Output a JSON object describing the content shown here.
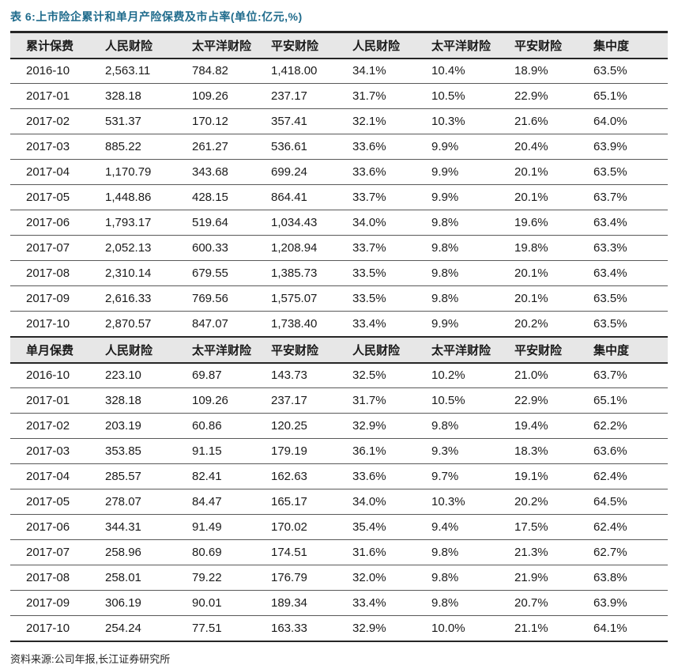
{
  "title": "表 6:上市险企累计和单月产险保费及市占率(单位:亿元,%)",
  "source": "资料来源:公司年报,长江证券研究所",
  "colors": {
    "title_text": "#1F6B8C",
    "header_background": "#E7E7E7",
    "heavy_rule": "#262626",
    "light_rule": "#595959",
    "body_text": "#1a1a1a"
  },
  "table": {
    "sections": [
      {
        "id": "cumulative",
        "headers": [
          "累计保费",
          "人民财险",
          "太平洋财险",
          "平安财险",
          "人民财险",
          "太平洋财险",
          "平安财险",
          "集中度"
        ],
        "rows": [
          [
            "2016-10",
            "2,563.11",
            "784.82",
            "1,418.00",
            "34.1%",
            "10.4%",
            "18.9%",
            "63.5%"
          ],
          [
            "2017-01",
            "328.18",
            "109.26",
            "237.17",
            "31.7%",
            "10.5%",
            "22.9%",
            "65.1%"
          ],
          [
            "2017-02",
            "531.37",
            "170.12",
            "357.41",
            "32.1%",
            "10.3%",
            "21.6%",
            "64.0%"
          ],
          [
            "2017-03",
            "885.22",
            "261.27",
            "536.61",
            "33.6%",
            "9.9%",
            "20.4%",
            "63.9%"
          ],
          [
            "2017-04",
            "1,170.79",
            "343.68",
            "699.24",
            "33.6%",
            "9.9%",
            "20.1%",
            "63.5%"
          ],
          [
            "2017-05",
            "1,448.86",
            "428.15",
            "864.41",
            "33.7%",
            "9.9%",
            "20.1%",
            "63.7%"
          ],
          [
            "2017-06",
            "1,793.17",
            "519.64",
            "1,034.43",
            "34.0%",
            "9.8%",
            "19.6%",
            "63.4%"
          ],
          [
            "2017-07",
            "2,052.13",
            "600.33",
            "1,208.94",
            "33.7%",
            "9.8%",
            "19.8%",
            "63.3%"
          ],
          [
            "2017-08",
            "2,310.14",
            "679.55",
            "1,385.73",
            "33.5%",
            "9.8%",
            "20.1%",
            "63.4%"
          ],
          [
            "2017-09",
            "2,616.33",
            "769.56",
            "1,575.07",
            "33.5%",
            "9.8%",
            "20.1%",
            "63.5%"
          ],
          [
            "2017-10",
            "2,870.57",
            "847.07",
            "1,738.40",
            "33.4%",
            "9.9%",
            "20.2%",
            "63.5%"
          ]
        ]
      },
      {
        "id": "monthly",
        "headers": [
          "单月保费",
          "人民财险",
          "太平洋财险",
          "平安财险",
          "人民财险",
          "太平洋财险",
          "平安财险",
          "集中度"
        ],
        "rows": [
          [
            "2016-10",
            "223.10",
            "69.87",
            "143.73",
            "32.5%",
            "10.2%",
            "21.0%",
            "63.7%"
          ],
          [
            "2017-01",
            "328.18",
            "109.26",
            "237.17",
            "31.7%",
            "10.5%",
            "22.9%",
            "65.1%"
          ],
          [
            "2017-02",
            "203.19",
            "60.86",
            "120.25",
            "32.9%",
            "9.8%",
            "19.4%",
            "62.2%"
          ],
          [
            "2017-03",
            "353.85",
            "91.15",
            "179.19",
            "36.1%",
            "9.3%",
            "18.3%",
            "63.6%"
          ],
          [
            "2017-04",
            "285.57",
            "82.41",
            "162.63",
            "33.6%",
            "9.7%",
            "19.1%",
            "62.4%"
          ],
          [
            "2017-05",
            "278.07",
            "84.47",
            "165.17",
            "34.0%",
            "10.3%",
            "20.2%",
            "64.5%"
          ],
          [
            "2017-06",
            "344.31",
            "91.49",
            "170.02",
            "35.4%",
            "9.4%",
            "17.5%",
            "62.4%"
          ],
          [
            "2017-07",
            "258.96",
            "80.69",
            "174.51",
            "31.6%",
            "9.8%",
            "21.3%",
            "62.7%"
          ],
          [
            "2017-08",
            "258.01",
            "79.22",
            "176.79",
            "32.0%",
            "9.8%",
            "21.9%",
            "63.8%"
          ],
          [
            "2017-09",
            "306.19",
            "90.01",
            "189.34",
            "33.4%",
            "9.8%",
            "20.7%",
            "63.9%"
          ],
          [
            "2017-10",
            "254.24",
            "77.51",
            "163.33",
            "32.9%",
            "10.0%",
            "21.1%",
            "64.1%"
          ]
        ]
      }
    ]
  }
}
